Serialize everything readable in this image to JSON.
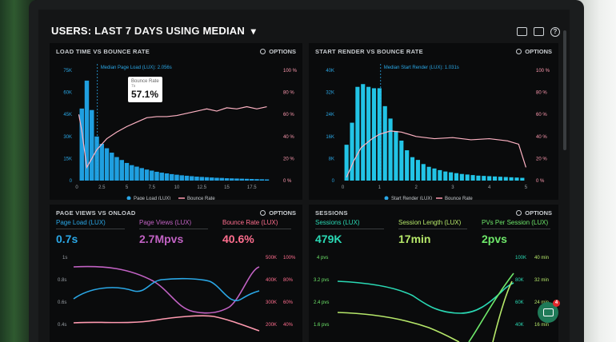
{
  "header": {
    "title_prefix": "USERS:",
    "title_range": "LAST 7 DAYS",
    "title_mid": "USING",
    "title_stat": "MEDIAN",
    "chevron": "▾"
  },
  "panels": {
    "load": {
      "title": "LOAD TIME VS BOUNCE RATE",
      "options": "OPTIONS",
      "median_label": "Median Page Load (LUX): 2.056s",
      "tooltip": {
        "label": "Bounce Rate",
        "sub": "7s",
        "value": "57.1%"
      },
      "legend": [
        "Page Load (LUX)",
        "Bounce Rate"
      ]
    },
    "start": {
      "title": "START RENDER VS BOUNCE RATE",
      "options": "OPTIONS",
      "median_label": "Median Start Render (LUX): 1.031s",
      "legend": [
        "Start Render (LUX)",
        "Bounce Rate"
      ]
    },
    "views": {
      "title": "PAGE VIEWS VS ONLOAD",
      "options": "OPTIONS",
      "metrics": [
        {
          "label": "Page Load (LUX)",
          "value": "0.7s",
          "color": "#2aa7e6"
        },
        {
          "label": "Page Views (LUX)",
          "value": "2.7Mpvs",
          "color": "#c262c4"
        },
        {
          "label": "Bounce Rate (LUX)",
          "value": "40.6%",
          "color": "#ff6e8e"
        }
      ],
      "y_left": [
        "1s",
        "0.8s",
        "0.6s",
        "0.4s"
      ],
      "y_mid": [
        "500K",
        "400K",
        "300K",
        "200K"
      ],
      "y_right": [
        "100%",
        "80%",
        "60%",
        "40%"
      ]
    },
    "sessions": {
      "title": "SESSIONS",
      "options": "OPTIONS",
      "metrics": [
        {
          "label": "Sessions (LUX)",
          "value": "479K",
          "color": "#2ad9b4"
        },
        {
          "label": "Session Length (LUX)",
          "value": "17min",
          "color": "#b6e86a"
        },
        {
          "label": "PVs Per Session (LUX)",
          "value": "2pvs",
          "color": "#6ee86a"
        }
      ],
      "y_left": [
        "4 pvs",
        "3.2 pvs",
        "2.4 pvs",
        "1.6 pvs"
      ],
      "y_mid": [
        "100K",
        "80K",
        "60K",
        "40K"
      ],
      "y_right": [
        "40 min",
        "32 min",
        "24 min",
        "16 min"
      ]
    }
  },
  "chart_data": [
    {
      "type": "bar",
      "title": "LOAD TIME VS BOUNCE RATE",
      "x_ticks": [
        "0",
        "2.5",
        "5",
        "7.5",
        "10",
        "12.5",
        "15",
        "17.5"
      ],
      "y_left_ticks": [
        "75K",
        "60K",
        "45K",
        "30K",
        "15K",
        "0"
      ],
      "y_right_ticks": [
        "100 %",
        "80 %",
        "60 %",
        "40 %",
        "20 %",
        "0 %"
      ],
      "xlim": [
        0,
        20
      ],
      "ylim": [
        0,
        75000
      ],
      "bar_width": 0.5,
      "x": [
        0.5,
        1,
        1.5,
        2,
        2.5,
        3,
        3.5,
        4,
        4.5,
        5,
        5.5,
        6,
        6.5,
        7,
        7.5,
        8,
        8.5,
        9,
        9.5,
        10,
        10.5,
        11,
        11.5,
        12,
        12.5,
        13,
        13.5,
        14,
        14.5,
        15,
        15.5,
        16,
        16.5,
        17,
        17.5,
        18,
        18.5,
        19
      ],
      "values": [
        49000,
        68000,
        48000,
        30000,
        25000,
        22000,
        19000,
        16000,
        14000,
        12000,
        10500,
        9500,
        8500,
        7500,
        6800,
        6000,
        5400,
        4900,
        4400,
        4000,
        3600,
        3300,
        3000,
        2700,
        2500,
        2300,
        2100,
        1900,
        1800,
        1600,
        1500,
        1400,
        1300,
        1200,
        1100,
        1000,
        900,
        800
      ],
      "line": {
        "name": "Bounce Rate",
        "x": [
          0.2,
          0.5,
          1,
          1.5,
          2,
          2.5,
          3,
          4,
          5,
          6,
          7,
          8,
          9,
          10,
          11,
          12,
          13,
          14,
          15,
          16,
          17,
          18,
          19
        ],
        "y": [
          60,
          45,
          12,
          20,
          28,
          33,
          38,
          44,
          49,
          53,
          57,
          58,
          58,
          59,
          61,
          63,
          65,
          63,
          66,
          65,
          67,
          65,
          67
        ]
      },
      "median_x": 2.056
    },
    {
      "type": "bar",
      "title": "START RENDER VS BOUNCE RATE",
      "x_ticks": [
        "0",
        "1",
        "2",
        "3",
        "4",
        "5"
      ],
      "y_left_ticks": [
        "40K",
        "32K",
        "24K",
        "16K",
        "8K",
        "0"
      ],
      "y_right_ticks": [
        "100 %",
        "80 %",
        "60 %",
        "40 %",
        "20 %",
        "0 %"
      ],
      "xlim": [
        -0.1,
        5.1
      ],
      "ylim": [
        0,
        40000
      ],
      "bar_width": 0.13,
      "x": [
        0.1,
        0.25,
        0.4,
        0.55,
        0.7,
        0.85,
        1.0,
        1.15,
        1.3,
        1.45,
        1.6,
        1.75,
        1.9,
        2.05,
        2.2,
        2.35,
        2.5,
        2.65,
        2.8,
        2.95,
        3.1,
        3.25,
        3.4,
        3.55,
        3.7,
        3.85,
        4.0,
        4.15,
        4.3,
        4.45,
        4.6,
        4.75,
        4.9
      ],
      "values": [
        13000,
        21000,
        34000,
        35000,
        34000,
        33500,
        33500,
        27000,
        22500,
        18000,
        14500,
        11000,
        8500,
        7500,
        6000,
        5000,
        4400,
        3800,
        3300,
        3000,
        2700,
        2400,
        2200,
        2000,
        1800,
        1700,
        1600,
        1500,
        1400,
        1300,
        1200,
        1100,
        1000
      ],
      "line": {
        "name": "Bounce Rate",
        "x": [
          0.1,
          0.3,
          0.5,
          0.8,
          1.0,
          1.3,
          1.6,
          2.0,
          2.5,
          3.0,
          3.5,
          4.0,
          4.5,
          4.8,
          5.0
        ],
        "y": [
          3,
          18,
          30,
          38,
          42,
          45,
          44,
          40,
          38,
          39,
          37,
          38,
          36,
          33,
          12
        ]
      },
      "median_x": 1.031
    }
  ]
}
